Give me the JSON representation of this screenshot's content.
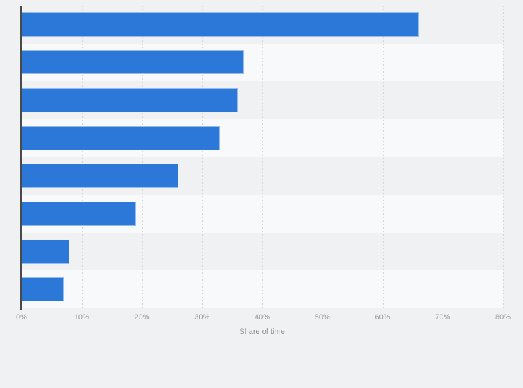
{
  "chart_data": {
    "type": "bar",
    "orientation": "horizontal",
    "values": [
      66,
      37,
      36,
      33,
      26,
      19,
      8,
      7
    ],
    "unit": "%",
    "title": "",
    "xlabel": "Share of time",
    "ylabel": "",
    "xlim": [
      0,
      80
    ],
    "x_ticks": [
      "0%",
      "10%",
      "20%",
      "30%",
      "40%",
      "50%",
      "60%",
      "70%",
      "80%"
    ],
    "grid": "vertical-dashed",
    "legend": "none",
    "category_labels_visible": false,
    "colors": {
      "bar": "#2b78d9",
      "page_background": "#f0f1f2",
      "row_stripe_even": "#f8f9fa",
      "gridline": "#d5d5d5",
      "axis_line": "#4a4a4a",
      "tick_label": "#9a9a9a",
      "axis_label": "#8c8c8c"
    }
  }
}
